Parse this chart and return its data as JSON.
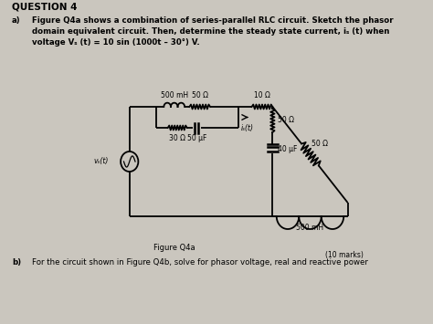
{
  "bg_color": "#cac6be",
  "question_header": "QUESTION 4",
  "part_a_label": "a)",
  "part_a_text": "Figure Q4a shows a combination of series-parallel RLC circuit. Sketch the phasor\ndomain equivalent circuit. Then, determine the steady state current, iₛ (t) when\nvoltage Vₛ (t) = 10 sin (1000t – 30°) V.",
  "figure_label": "Figure Q4a",
  "marks_label": "(10 marks)",
  "part_b_label": "b)",
  "part_b_text": "For the circuit shown in Figure Q4b, solve for phasor voltage, real and reactive power",
  "L1_label": "500 mH",
  "R1_label": "50 Ω",
  "R2_label": "10 Ω",
  "R3_label": "30 Ω",
  "C1_label": "50 μF",
  "is_label": "iₛ(t)",
  "R4_label": "50 Ω",
  "C2_label": "40 μF",
  "R5_label": "50 Ω",
  "L2_label": "500 mH",
  "src_label": "vₛ(t)"
}
